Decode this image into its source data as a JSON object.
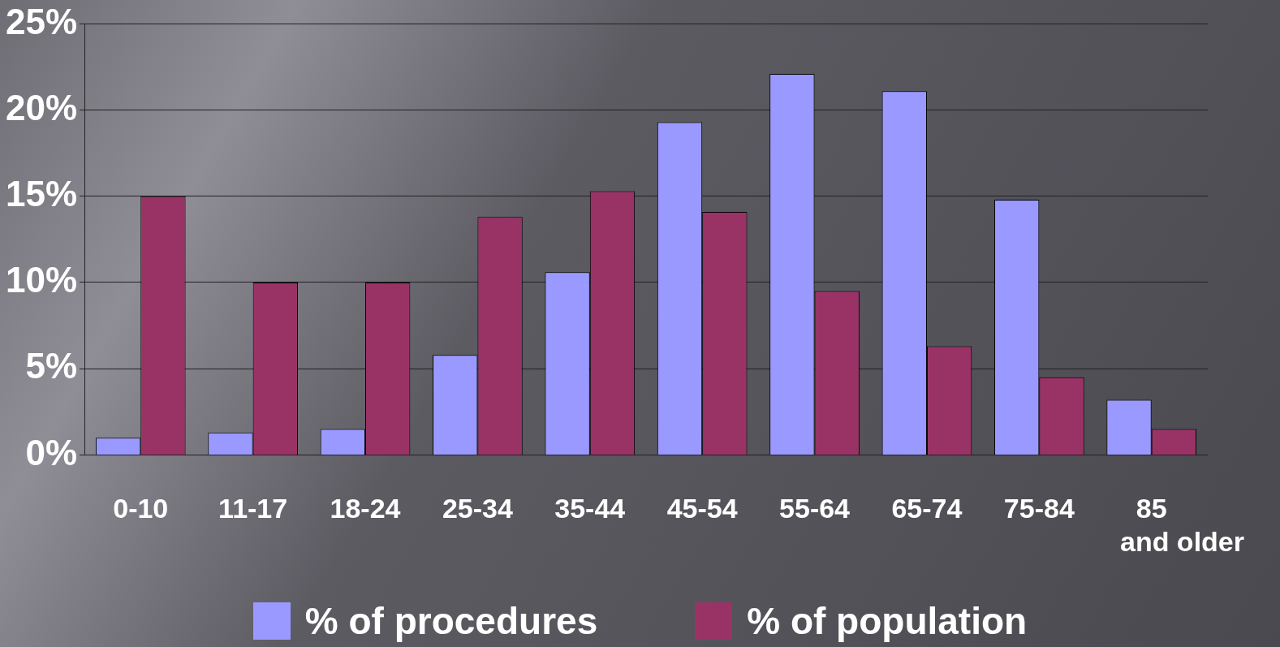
{
  "chart_data": {
    "type": "bar",
    "categories": [
      "0-10",
      "11-17",
      "18-24",
      "25-34",
      "35-44",
      "45-54",
      "55-64",
      "65-74",
      "75-84",
      "85 and older"
    ],
    "series": [
      {
        "name": "% of procedures",
        "color": "#9999ff",
        "values": [
          1.0,
          1.3,
          1.5,
          5.8,
          10.6,
          19.3,
          22.1,
          21.1,
          14.8,
          3.2
        ]
      },
      {
        "name": "% of population",
        "color": "#993366",
        "values": [
          15.0,
          10.0,
          10.0,
          13.8,
          15.3,
          14.1,
          9.5,
          6.3,
          4.5,
          1.5
        ]
      }
    ],
    "ylim": [
      0,
      25
    ],
    "yticks": [
      {
        "value": 0,
        "label": "0%"
      },
      {
        "value": 5,
        "label": "5%"
      },
      {
        "value": 10,
        "label": "10%"
      },
      {
        "value": 15,
        "label": "15%"
      },
      {
        "value": 20,
        "label": "20%"
      },
      {
        "value": 25,
        "label": "25%"
      }
    ],
    "grid": "y",
    "legend": "bottom"
  }
}
